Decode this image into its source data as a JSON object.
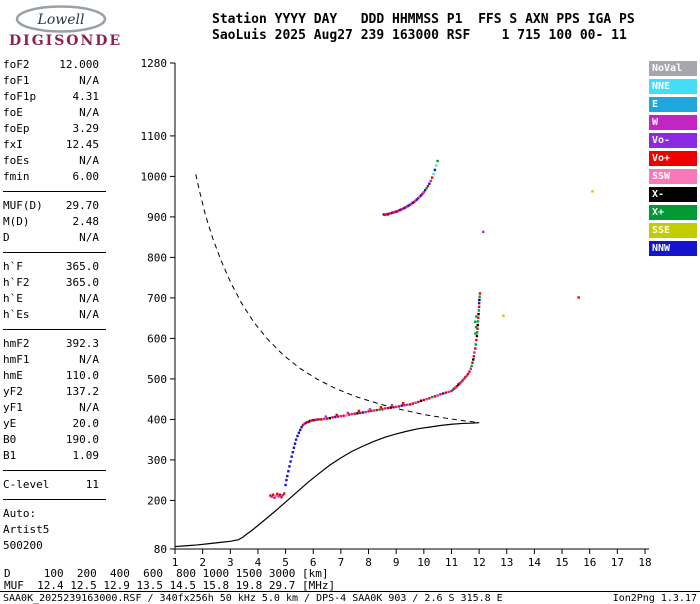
{
  "logo": {
    "brand": "Lowell",
    "product": "DIGISONDE"
  },
  "header": {
    "line1": "Station YYYY DAY   DDD HHMMSS P1  FFS S AXN PPS IGA PS",
    "line2": "SaoLuis 2025 Aug27 239 163000 RSF    1 715 100 00- 11"
  },
  "params": {
    "groups": [
      {
        "rows": [
          {
            "label": "foF2",
            "value": "12.000"
          },
          {
            "label": "foF1",
            "value": "N/A"
          },
          {
            "label": "foF1p",
            "value": "4.31"
          },
          {
            "label": "foE",
            "value": "N/A"
          },
          {
            "label": "foEp",
            "value": "3.29"
          },
          {
            "label": "fxI",
            "value": "12.45"
          },
          {
            "label": "foEs",
            "value": "N/A"
          },
          {
            "label": "fmin",
            "value": "6.00"
          }
        ]
      },
      {
        "rows": [
          {
            "label": "MUF(D)",
            "value": "29.70"
          },
          {
            "label": "M(D)",
            "value": "2.48"
          },
          {
            "label": "D",
            "value": "N/A"
          }
        ]
      },
      {
        "rows": [
          {
            "label": "h`F",
            "value": "365.0"
          },
          {
            "label": "h`F2",
            "value": "365.0"
          },
          {
            "label": "h`E",
            "value": "N/A"
          },
          {
            "label": "h`Es",
            "value": "N/A"
          }
        ]
      },
      {
        "rows": [
          {
            "label": "hmF2",
            "value": "392.3"
          },
          {
            "label": "hmF1",
            "value": "N/A"
          },
          {
            "label": "hmE",
            "value": "110.0"
          },
          {
            "label": "yF2",
            "value": "137.2"
          },
          {
            "label": "yF1",
            "value": "N/A"
          },
          {
            "label": "yE",
            "value": "20.0"
          },
          {
            "label": "B0",
            "value": "190.0"
          },
          {
            "label": "B1",
            "value": "1.09"
          }
        ]
      },
      {
        "rows": [
          {
            "label": "C-level",
            "value": "11"
          }
        ]
      }
    ],
    "auto_lines": [
      "Auto:",
      "Artist5",
      "500200"
    ]
  },
  "legend": {
    "items": [
      {
        "label": "NoVal",
        "color": "#A6A6AE"
      },
      {
        "label": "NNE",
        "color": "#45DCF5"
      },
      {
        "label": "E",
        "color": "#1FA6DC"
      },
      {
        "label": "W",
        "color": "#C325C3"
      },
      {
        "label": "Vo-",
        "color": "#8A2BE2"
      },
      {
        "label": "Vo+",
        "color": "#EE0000"
      },
      {
        "label": "SSW",
        "color": "#F878B8"
      },
      {
        "label": "X-",
        "color": "#000000"
      },
      {
        "label": "X+",
        "color": "#009933"
      },
      {
        "label": "SSE",
        "color": "#C2CC00"
      },
      {
        "label": "NNW",
        "color": "#1414CC"
      }
    ]
  },
  "chart_data": {
    "type": "scatter",
    "title": "SaoLuis ionogram 2025 Aug27 239 163000",
    "xlabel": "[MHz]",
    "ylabel": "[km]",
    "xlim": [
      1,
      18
    ],
    "ylim": [
      80,
      1280
    ],
    "x_ticks": [
      1,
      2,
      3,
      4,
      5,
      6,
      7,
      8,
      9,
      10,
      11,
      12,
      13,
      14,
      15,
      16,
      17,
      18
    ],
    "y_ticks": [
      1280,
      1100,
      1000,
      900,
      800,
      700,
      600,
      500,
      400,
      300,
      200,
      80
    ],
    "grid": false,
    "legend_position": "right-outside",
    "profile_curve": [
      [
        1.0,
        86
      ],
      [
        1.4,
        88
      ],
      [
        1.8,
        90
      ],
      [
        2.2,
        93
      ],
      [
        2.6,
        96
      ],
      [
        3.0,
        99
      ],
      [
        3.3,
        103
      ],
      [
        3.45,
        109
      ],
      [
        3.6,
        117
      ],
      [
        3.8,
        127
      ],
      [
        4.0,
        138
      ],
      [
        4.3,
        155
      ],
      [
        4.6,
        172
      ],
      [
        5.0,
        196
      ],
      [
        5.4,
        220
      ],
      [
        5.8,
        244
      ],
      [
        6.2,
        266
      ],
      [
        6.6,
        287
      ],
      [
        7.0,
        305
      ],
      [
        7.4,
        321
      ],
      [
        7.8,
        334
      ],
      [
        8.2,
        346
      ],
      [
        8.6,
        356
      ],
      [
        9.0,
        364
      ],
      [
        9.4,
        371
      ],
      [
        9.8,
        377
      ],
      [
        10.2,
        381
      ],
      [
        10.6,
        385
      ],
      [
        11.0,
        388
      ],
      [
        11.4,
        390
      ],
      [
        11.8,
        391
      ],
      [
        12.0,
        392
      ]
    ],
    "transmission_curve": [
      [
        1.75,
        1005
      ],
      [
        1.9,
        960
      ],
      [
        2.1,
        905
      ],
      [
        2.35,
        850
      ],
      [
        2.65,
        795
      ],
      [
        3.0,
        740
      ],
      [
        3.4,
        688
      ],
      [
        3.85,
        640
      ],
      [
        4.35,
        598
      ],
      [
        4.9,
        560
      ],
      [
        5.5,
        527
      ],
      [
        6.15,
        499
      ],
      [
        6.85,
        475
      ],
      [
        7.6,
        455
      ],
      [
        8.4,
        438
      ],
      [
        9.2,
        424
      ],
      [
        10.0,
        412
      ],
      [
        10.8,
        403
      ],
      [
        11.5,
        396
      ],
      [
        12.0,
        392
      ]
    ],
    "points": [
      [
        4.45,
        212,
        "Vo+"
      ],
      [
        4.5,
        209,
        "W"
      ],
      [
        4.55,
        214,
        "Vo+"
      ],
      [
        4.6,
        207,
        "Vo+"
      ],
      [
        4.65,
        211,
        "SSW"
      ],
      [
        4.7,
        216,
        "Vo+"
      ],
      [
        4.75,
        210,
        "W"
      ],
      [
        4.8,
        214,
        "Vo+"
      ],
      [
        4.85,
        208,
        "Vo+"
      ],
      [
        4.9,
        213,
        "W"
      ],
      [
        4.95,
        217,
        "Vo+"
      ],
      [
        5.0,
        238,
        "NNW"
      ],
      [
        5.03,
        250,
        "NNW"
      ],
      [
        5.06,
        260,
        "NNW"
      ],
      [
        5.1,
        272,
        "NNW"
      ],
      [
        5.14,
        284,
        "NNW"
      ],
      [
        5.18,
        296,
        "NNW"
      ],
      [
        5.22,
        308,
        "NNW"
      ],
      [
        5.26,
        319,
        "NNW"
      ],
      [
        5.3,
        330,
        "NNW"
      ],
      [
        5.34,
        340,
        "NNW"
      ],
      [
        5.38,
        350,
        "NNW"
      ],
      [
        5.43,
        359,
        "NNW"
      ],
      [
        5.48,
        367,
        "NNW"
      ],
      [
        5.53,
        374,
        "NNW"
      ],
      [
        5.58,
        381,
        "NNW"
      ],
      [
        5.63,
        386,
        "Vo+"
      ],
      [
        5.68,
        389,
        "W"
      ],
      [
        5.73,
        391,
        "NNW"
      ],
      [
        5.78,
        393,
        "Vo+"
      ],
      [
        5.83,
        394,
        "Vo+"
      ],
      [
        5.88,
        396,
        "X-"
      ],
      [
        5.93,
        397,
        "W"
      ],
      [
        5.98,
        398,
        "Vo+"
      ],
      [
        6.03,
        398,
        "NNW"
      ],
      [
        6.08,
        399,
        "Vo+"
      ],
      [
        6.13,
        399,
        "W"
      ],
      [
        6.18,
        400,
        "Vo+"
      ],
      [
        6.24,
        400,
        "X+"
      ],
      [
        6.3,
        400,
        "Vo+"
      ],
      [
        6.4,
        401,
        "W"
      ],
      [
        6.5,
        402,
        "Vo+"
      ],
      [
        6.6,
        403,
        "X-"
      ],
      [
        6.7,
        405,
        "Vo+"
      ],
      [
        6.8,
        406,
        "NNW"
      ],
      [
        6.9,
        407,
        "Vo+"
      ],
      [
        7.0,
        408,
        "W"
      ],
      [
        7.1,
        409,
        "Vo+"
      ],
      [
        7.2,
        410,
        "SSW"
      ],
      [
        7.3,
        412,
        "Vo+"
      ],
      [
        7.4,
        413,
        "W"
      ],
      [
        7.5,
        414,
        "Vo+"
      ],
      [
        7.6,
        415,
        "X-"
      ],
      [
        7.7,
        416,
        "Vo+"
      ],
      [
        7.8,
        417,
        "NNW"
      ],
      [
        7.9,
        418,
        "W"
      ],
      [
        8.0,
        420,
        "Vo+"
      ],
      [
        8.1,
        421,
        "Vo+"
      ],
      [
        8.2,
        422,
        "W"
      ],
      [
        8.3,
        423,
        "Vo+"
      ],
      [
        8.4,
        424,
        "X+"
      ],
      [
        8.5,
        425,
        "Vo+"
      ],
      [
        8.6,
        427,
        "W"
      ],
      [
        8.7,
        428,
        "Vo+"
      ],
      [
        8.8,
        429,
        "X-"
      ],
      [
        8.9,
        430,
        "Vo+"
      ],
      [
        9.0,
        431,
        "W"
      ],
      [
        9.1,
        432,
        "Vo+"
      ],
      [
        9.2,
        434,
        "NNW"
      ],
      [
        9.3,
        435,
        "Vo+"
      ],
      [
        9.4,
        436,
        "W"
      ],
      [
        9.5,
        437,
        "Vo+"
      ],
      [
        6.45,
        407,
        "W"
      ],
      [
        6.85,
        411,
        "Vo+"
      ],
      [
        7.25,
        416,
        "W"
      ],
      [
        7.65,
        421,
        "Vo+"
      ],
      [
        8.05,
        425,
        "W"
      ],
      [
        8.45,
        430,
        "Vo+"
      ],
      [
        8.85,
        435,
        "W"
      ],
      [
        9.25,
        440,
        "Vo+"
      ],
      [
        9.6,
        439,
        "Vo+"
      ],
      [
        9.7,
        441,
        "W"
      ],
      [
        9.8,
        443,
        "Vo+"
      ],
      [
        9.9,
        446,
        "X-"
      ],
      [
        10.0,
        448,
        "Vo+"
      ],
      [
        10.1,
        450,
        "W"
      ],
      [
        10.2,
        452,
        "Vo+"
      ],
      [
        10.3,
        455,
        "X+"
      ],
      [
        10.4,
        457,
        "Vo+"
      ],
      [
        10.5,
        459,
        "W"
      ],
      [
        10.6,
        462,
        "Vo+"
      ],
      [
        10.7,
        464,
        "NNW"
      ],
      [
        10.8,
        466,
        "Vo+"
      ],
      [
        10.9,
        468,
        "W"
      ],
      [
        11.0,
        470,
        "Vo+"
      ],
      [
        11.05,
        473,
        "X+"
      ],
      [
        11.1,
        476,
        "Vo+"
      ],
      [
        11.15,
        479,
        "W"
      ],
      [
        11.2,
        482,
        "Vo+"
      ],
      [
        11.25,
        486,
        "X-"
      ],
      [
        11.3,
        489,
        "Vo+"
      ],
      [
        11.35,
        492,
        "W"
      ],
      [
        11.4,
        496,
        "Vo+"
      ],
      [
        11.45,
        500,
        "X+"
      ],
      [
        11.5,
        504,
        "Vo+"
      ],
      [
        11.55,
        508,
        "W"
      ],
      [
        11.6,
        512,
        "Vo+"
      ],
      [
        11.65,
        518,
        "Vo+"
      ],
      [
        11.7,
        525,
        "W"
      ],
      [
        11.73,
        532,
        "X+"
      ],
      [
        11.76,
        540,
        "Vo+"
      ],
      [
        11.79,
        548,
        "X-"
      ],
      [
        11.81,
        556,
        "Vo+"
      ],
      [
        11.83,
        565,
        "W"
      ],
      [
        11.86,
        575,
        "Vo+"
      ],
      [
        11.88,
        585,
        "X+"
      ],
      [
        11.9,
        596,
        "Vo+"
      ],
      [
        11.92,
        606,
        "X-"
      ],
      [
        11.93,
        615,
        "X+"
      ],
      [
        11.94,
        624,
        "Vo+"
      ],
      [
        11.95,
        633,
        "X-"
      ],
      [
        11.96,
        642,
        "X+"
      ],
      [
        11.97,
        651,
        "Vo+"
      ],
      [
        11.98,
        660,
        "X-"
      ],
      [
        11.99,
        669,
        "X+"
      ],
      [
        12.0,
        678,
        "Vo+"
      ],
      [
        12.0,
        687,
        "NNW"
      ],
      [
        12.01,
        695,
        "X-"
      ],
      [
        12.02,
        703,
        "X+"
      ],
      [
        12.03,
        711,
        "Vo+"
      ],
      [
        11.87,
        612,
        "X+"
      ],
      [
        11.89,
        628,
        "X+"
      ],
      [
        11.86,
        641,
        "X+"
      ],
      [
        11.9,
        654,
        "X+"
      ],
      [
        8.55,
        906,
        "NNW"
      ],
      [
        8.6,
        905,
        "Vo+"
      ],
      [
        8.65,
        907,
        "W"
      ],
      [
        8.7,
        906,
        "NNW"
      ],
      [
        8.75,
        908,
        "Vo+"
      ],
      [
        8.8,
        909,
        "W"
      ],
      [
        8.85,
        910,
        "NNW"
      ],
      [
        8.9,
        911,
        "Vo+"
      ],
      [
        8.95,
        912,
        "W"
      ],
      [
        9.0,
        913,
        "NNW"
      ],
      [
        9.05,
        914,
        "Vo+"
      ],
      [
        9.1,
        916,
        "W"
      ],
      [
        9.15,
        917,
        "NNW"
      ],
      [
        9.2,
        919,
        "Vo+"
      ],
      [
        9.25,
        920,
        "W"
      ],
      [
        9.3,
        922,
        "NNW"
      ],
      [
        9.35,
        924,
        "Vo+"
      ],
      [
        9.4,
        926,
        "W"
      ],
      [
        9.45,
        928,
        "NNW"
      ],
      [
        9.5,
        930,
        "Vo+"
      ],
      [
        9.55,
        932,
        "W"
      ],
      [
        9.6,
        935,
        "NNW"
      ],
      [
        9.65,
        937,
        "Vo+"
      ],
      [
        9.7,
        940,
        "W"
      ],
      [
        9.75,
        943,
        "NNW"
      ],
      [
        9.8,
        946,
        "Vo+"
      ],
      [
        9.85,
        950,
        "W"
      ],
      [
        9.9,
        953,
        "NNW"
      ],
      [
        9.95,
        957,
        "Vo+"
      ],
      [
        10.0,
        961,
        "W"
      ],
      [
        10.05,
        966,
        "NNW"
      ],
      [
        10.1,
        971,
        "X+"
      ],
      [
        10.15,
        976,
        "Vo+"
      ],
      [
        10.2,
        982,
        "NNW"
      ],
      [
        10.25,
        989,
        "W"
      ],
      [
        10.3,
        997,
        "Vo+"
      ],
      [
        10.35,
        1006,
        "NNE"
      ],
      [
        10.4,
        1016,
        "NNW"
      ],
      [
        10.45,
        1027,
        "NNE"
      ],
      [
        10.5,
        1038,
        "X+"
      ],
      [
        15.6,
        701,
        "Vo+"
      ],
      [
        12.88,
        656,
        "SSE"
      ],
      [
        12.15,
        863,
        "W"
      ],
      [
        16.1,
        963,
        "SSE"
      ]
    ]
  },
  "footer": {
    "d_line": "D     100  200  400  600  800 1000 1500 3000 [km]",
    "muf_line": "MUF  12.4 12.5 12.9 13.5 14.5 15.8 19.8 29.7 [MHz]",
    "status_left": "SAA0K_2025239163000.RSF / 340fx256h 50 kHz 5.0 km / DPS-4 SAA0K 903 / 2.6 S 315.8 E",
    "status_right": "Ion2Png 1.3.17"
  }
}
